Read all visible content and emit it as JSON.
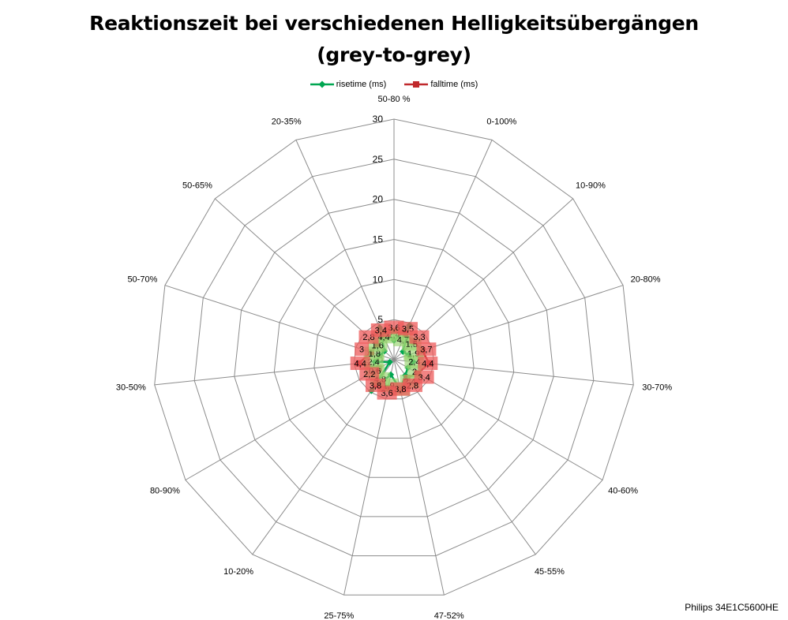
{
  "chart_data": {
    "type": "radar",
    "title_lines": [
      "Reaktionszeit bei verschiedenen Helligkeitsübergängen",
      "(grey-to-grey)"
    ],
    "categories": [
      "50-80 %",
      "0-100%",
      "10-90%",
      "20-80%",
      "30-70%",
      "40-60%",
      "45-55%",
      "47-52%",
      "25-75%",
      "10-20%",
      "80-90%",
      "30-50%",
      "50-70%",
      "50-65%",
      "20-35%"
    ],
    "radial_ticks": [
      "0",
      "5",
      "10",
      "15",
      "20",
      "25",
      "30"
    ],
    "rmax": 30,
    "grid": true,
    "legend_position": "top",
    "series": [
      {
        "name": "risetime (ms)",
        "color": "#00a651",
        "marker": "diamond",
        "values": [
          2.4,
          4.7,
          1.5,
          1.9,
          2.4,
          2.0,
          2.4,
          3.8,
          1.9,
          4.8,
          0.6,
          2.4,
          1.8,
          1.6,
          4.4
        ],
        "labels": [
          "2,4",
          "4,7",
          "1,5",
          "1,9",
          "2,4",
          "2",
          "2,4",
          "3,8",
          "1,9",
          "4,8",
          "0,6",
          "2,4",
          "1,8",
          "1,6",
          "4,4"
        ]
      },
      {
        "name": "falltime (ms)",
        "color": "#c0292c",
        "marker": "square",
        "values": [
          3.6,
          3.5,
          3.3,
          3.7,
          4.4,
          3.4,
          2.8,
          3.8,
          3.6,
          3.8,
          2.2,
          4.4,
          3.0,
          2.8,
          3.4
        ],
        "labels": [
          "3,6",
          "3,5",
          "3,3",
          "3,7",
          "4,4",
          "3,4",
          "2,8",
          "3,8",
          "3,6",
          "3,8",
          "2,2",
          "4,4",
          "3",
          "2,8",
          "3,4"
        ]
      }
    ]
  },
  "credit": "Philips 34E1C5600HE"
}
